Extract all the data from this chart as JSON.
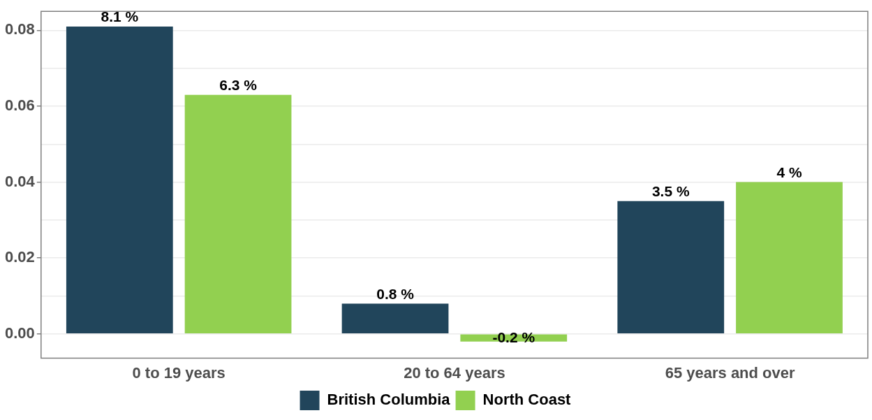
{
  "chart_data": {
    "type": "bar",
    "categories": [
      "0 to 19 years",
      "20 to 64 years",
      "65 years and over"
    ],
    "series": [
      {
        "name": "British Columbia",
        "color": "#21455b",
        "values": [
          0.081,
          0.008,
          0.035
        ],
        "value_labels": [
          "8.1 %",
          "0.8 %",
          "3.5 %"
        ]
      },
      {
        "name": "North Coast",
        "color": "#92d050",
        "values": [
          0.063,
          -0.002,
          0.04
        ],
        "value_labels": [
          "6.3 %",
          "-0.2 %",
          "4 %"
        ]
      }
    ],
    "ylim": [
      -0.0064,
      0.085
    ],
    "yticks": [
      {
        "value": 0,
        "label": "0.00"
      },
      {
        "value": 0.01,
        "label": null
      },
      {
        "value": 0.02,
        "label": "0.02"
      },
      {
        "value": 0.03,
        "label": null
      },
      {
        "value": 0.04,
        "label": "0.04"
      },
      {
        "value": 0.05,
        "label": null
      },
      {
        "value": 0.06,
        "label": "0.06"
      },
      {
        "value": 0.07,
        "label": null
      },
      {
        "value": 0.08,
        "label": "0.08"
      }
    ],
    "grid": "y",
    "legend": "bottom"
  }
}
